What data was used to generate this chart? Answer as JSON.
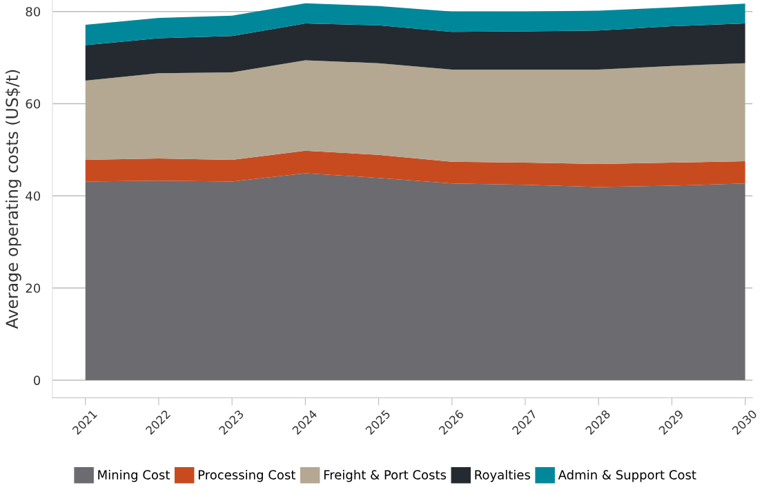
{
  "chart_data": {
    "type": "area",
    "stacked": true,
    "ylabel": "Average operating costs (US$/t)",
    "x": [
      2021,
      2022,
      2023,
      2024,
      2025,
      2026,
      2027,
      2028,
      2029,
      2030
    ],
    "series": [
      {
        "name": "Mining Cost",
        "color": "#6b6b70",
        "values": [
          43.1,
          43.3,
          43.1,
          44.9,
          43.9,
          42.7,
          42.4,
          41.9,
          42.2,
          42.7
        ]
      },
      {
        "name": "Processing Cost",
        "color": "#c84b1f",
        "values": [
          4.7,
          4.8,
          4.7,
          4.9,
          5.0,
          4.7,
          4.8,
          5.0,
          5.0,
          4.8
        ]
      },
      {
        "name": "Freight & Port Costs",
        "color": "#b4a892",
        "values": [
          17.2,
          18.5,
          19.0,
          19.6,
          19.9,
          20.0,
          20.2,
          20.5,
          21.0,
          21.3
        ]
      },
      {
        "name": "Royalties",
        "color": "#252a30",
        "values": [
          7.7,
          7.6,
          7.9,
          8.0,
          8.2,
          8.2,
          8.3,
          8.5,
          8.6,
          8.6
        ]
      },
      {
        "name": "Admin & Support Cost",
        "color": "#00889a",
        "values": [
          4.4,
          4.4,
          4.4,
          4.4,
          4.2,
          4.4,
          4.3,
          4.3,
          4.1,
          4.3
        ]
      }
    ],
    "xlim": [
      2020.55,
      2030.1
    ],
    "xticks": [
      2021,
      2022,
      2023,
      2024,
      2025,
      2026,
      2027,
      2028,
      2029,
      2030
    ],
    "ylim": [
      -3.8,
      82.5
    ],
    "yticks": [
      0,
      20,
      40,
      60,
      80
    ],
    "grid": "y",
    "legend": "bottom"
  }
}
